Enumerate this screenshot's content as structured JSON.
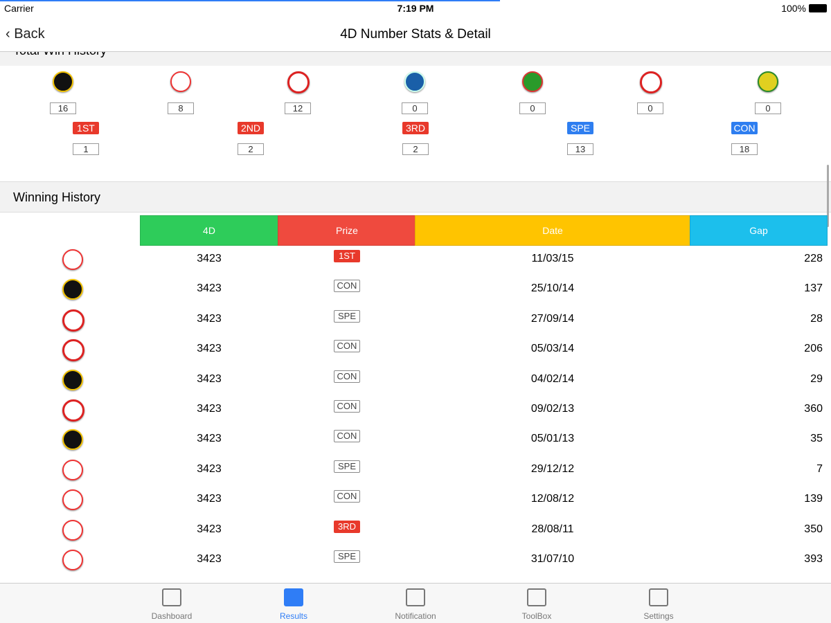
{
  "status": {
    "carrier": "Carrier",
    "time": "7:19 PM",
    "battery": "100%"
  },
  "nav": {
    "back": "Back",
    "title": "4D Number Stats & Detail"
  },
  "total_win_history": {
    "title": "Total Win History",
    "operator_counts": [
      16,
      8,
      12,
      0,
      0,
      0,
      0
    ],
    "prizes": [
      {
        "label": "1ST",
        "count": 1
      },
      {
        "label": "2ND",
        "count": 2
      },
      {
        "label": "3RD",
        "count": 2
      },
      {
        "label": "SPE",
        "count": 13
      },
      {
        "label": "CON",
        "count": 18
      }
    ]
  },
  "winning_history": {
    "title": "Winning History",
    "columns": [
      "4D",
      "Prize",
      "Date",
      "Gap"
    ],
    "rows": [
      [
        "3423",
        "1ST",
        "11/03/15",
        228
      ],
      [
        "3423",
        "CON",
        "25/10/14",
        137
      ],
      [
        "3423",
        "SPE",
        "27/09/14",
        28
      ],
      [
        "3423",
        "CON",
        "05/03/14",
        206
      ],
      [
        "3423",
        "CON",
        "04/02/14",
        29
      ],
      [
        "3423",
        "CON",
        "09/02/13",
        360
      ],
      [
        "3423",
        "CON",
        "05/01/13",
        35
      ],
      [
        "3423",
        "SPE",
        "29/12/12",
        7
      ],
      [
        "3423",
        "CON",
        "12/08/12",
        139
      ],
      [
        "3423",
        "3RD",
        "28/08/11",
        350
      ],
      [
        "3423",
        "SPE",
        "31/07/10",
        393
      ]
    ]
  },
  "tabs": [
    "Dashboard",
    "Results",
    "Notification",
    "ToolBox",
    "Settings"
  ]
}
